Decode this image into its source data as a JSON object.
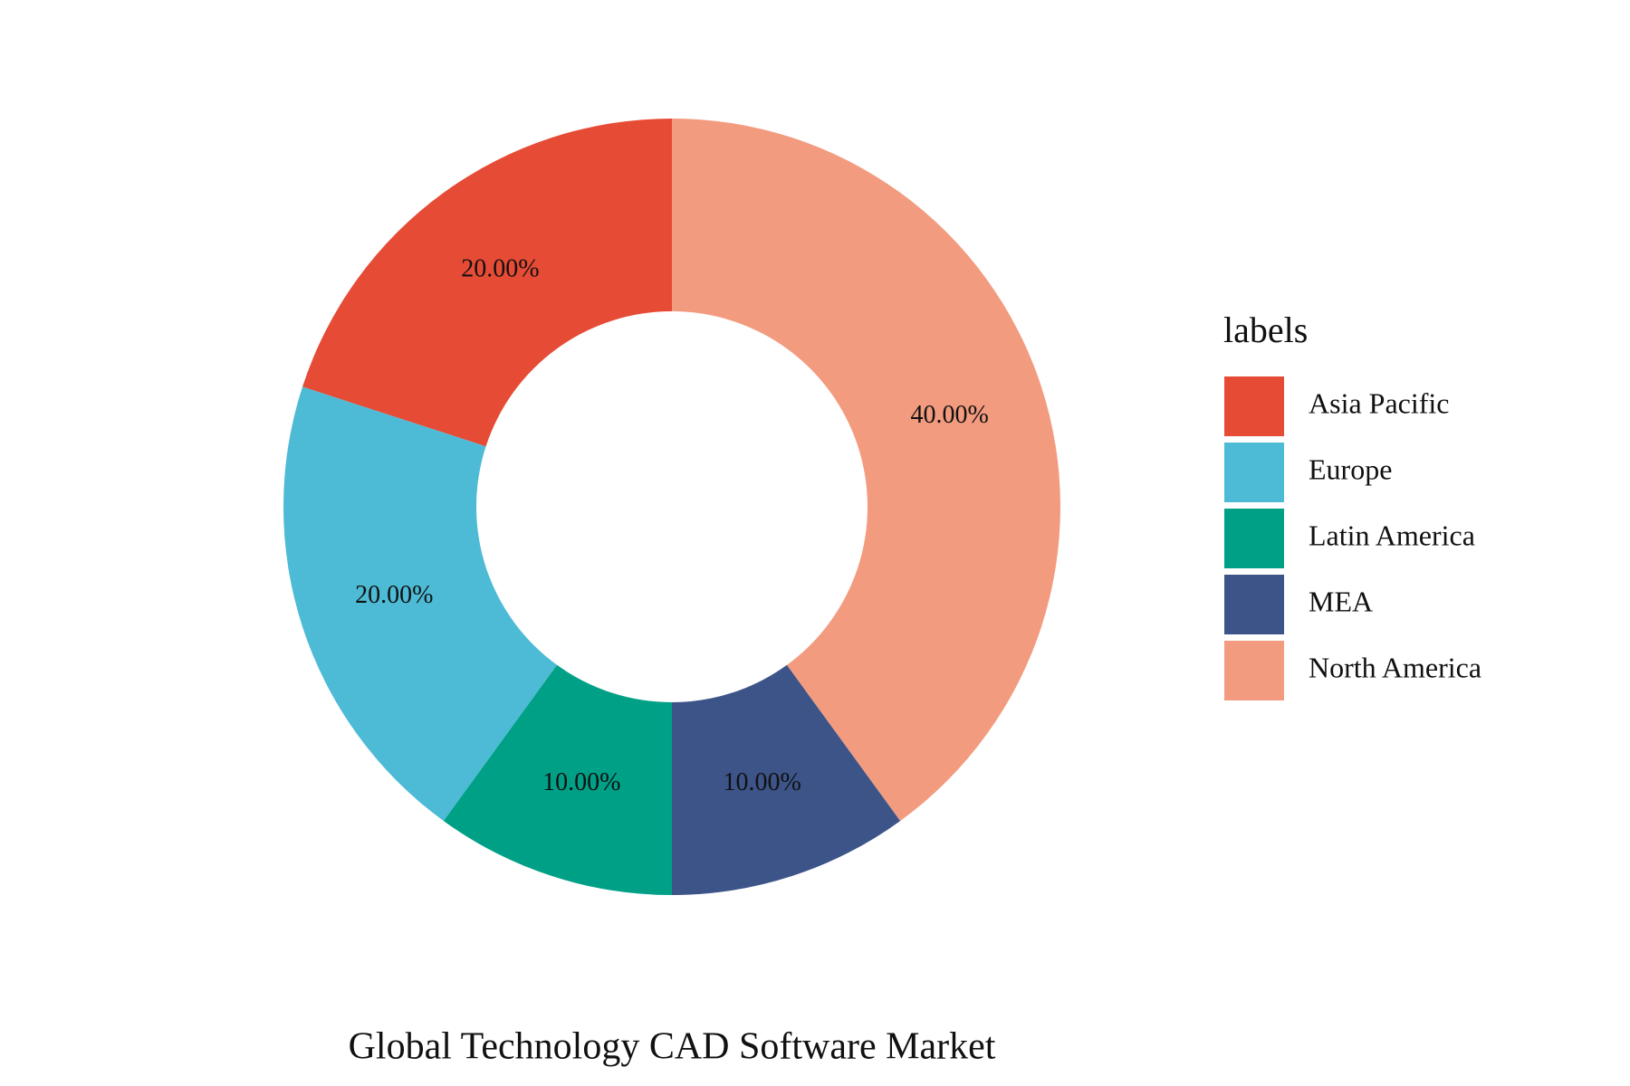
{
  "chart_data": {
    "type": "donut",
    "title": "Global Technology CAD Software Market",
    "legend_title": "labels",
    "categories": [
      "Asia Pacific",
      "Europe",
      "Latin America",
      "MEA",
      "North America"
    ],
    "values": [
      20,
      20,
      10,
      10,
      40
    ],
    "value_labels": [
      "20.00%",
      "20.00%",
      "10.00%",
      "10.00%",
      "40.00%"
    ],
    "colors": [
      "#e64b35",
      "#4dbbd5",
      "#00a087",
      "#3c5488",
      "#f39b7f"
    ],
    "direction": "counterclockwise",
    "legend": "right"
  }
}
